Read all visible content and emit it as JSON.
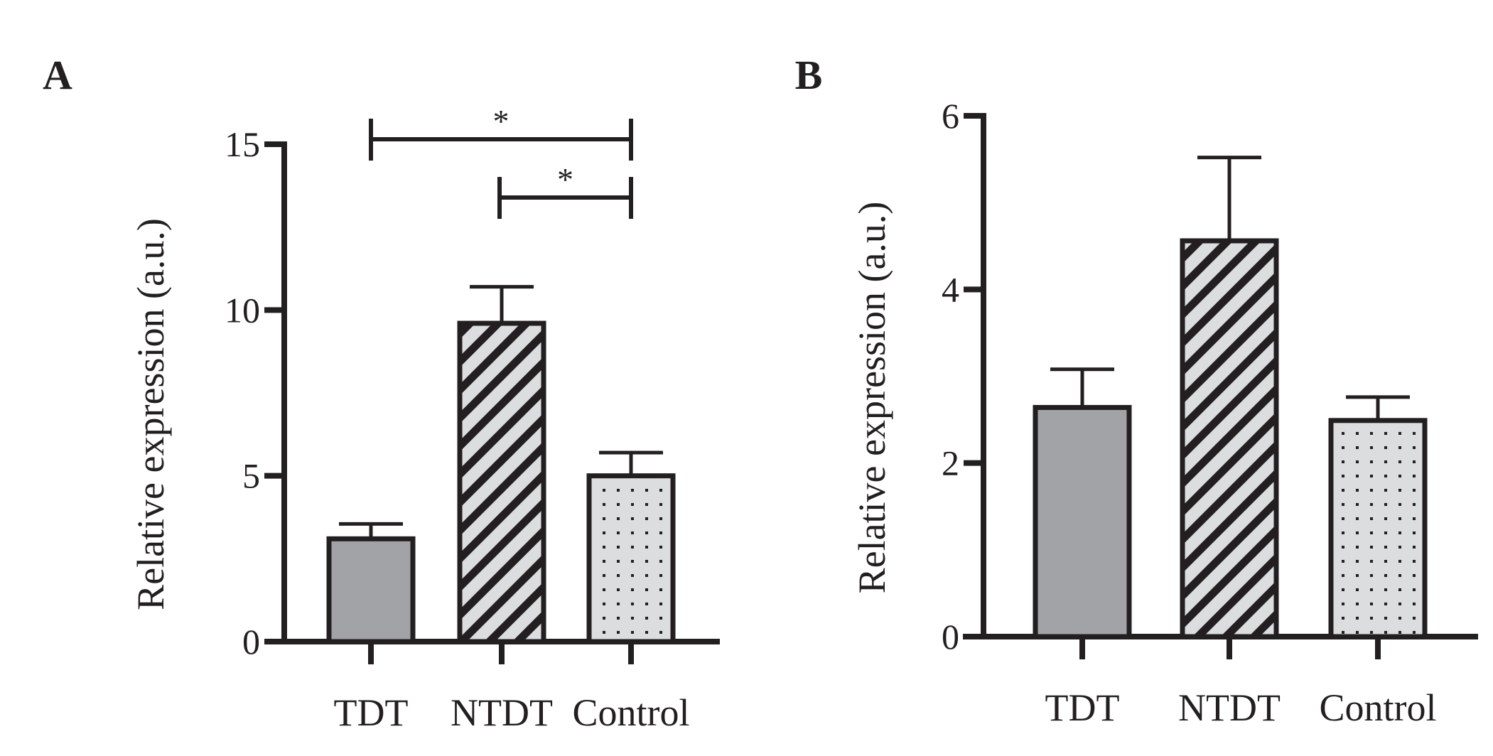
{
  "colors": {
    "ink": "#231f20",
    "solid_fill": "#a2a3a6",
    "pattern_bg": "#dcdddf"
  },
  "chart_data": [
    {
      "type": "bar",
      "panel_label": "A",
      "categories": [
        "TDT",
        "NTDT",
        "Control"
      ],
      "values": [
        3.1,
        9.6,
        5.0
      ],
      "error_upper": [
        3.55,
        10.7,
        5.7
      ],
      "fills": [
        "solid",
        "diagonal-hatch",
        "dots"
      ],
      "ylabel": "Relative expression (a.u.)",
      "ylim": [
        0,
        15
      ],
      "yticks": [
        "0",
        "5",
        "10",
        "15"
      ],
      "grid": false,
      "significance": [
        {
          "from": "TDT",
          "to": "Control",
          "label": "*"
        },
        {
          "from": "NTDT",
          "to": "Control",
          "label": "*"
        }
      ]
    },
    {
      "type": "bar",
      "panel_label": "B",
      "categories": [
        "TDT",
        "NTDT",
        "Control"
      ],
      "values": [
        2.64,
        4.56,
        2.49
      ],
      "error_upper": [
        3.08,
        5.52,
        2.76
      ],
      "fills": [
        "solid",
        "diagonal-hatch",
        "dots"
      ],
      "ylabel": "Relative expression (a.u.)",
      "ylim": [
        0,
        6
      ],
      "yticks": [
        "0",
        "2",
        "4",
        "6"
      ],
      "grid": false,
      "significance": []
    }
  ]
}
